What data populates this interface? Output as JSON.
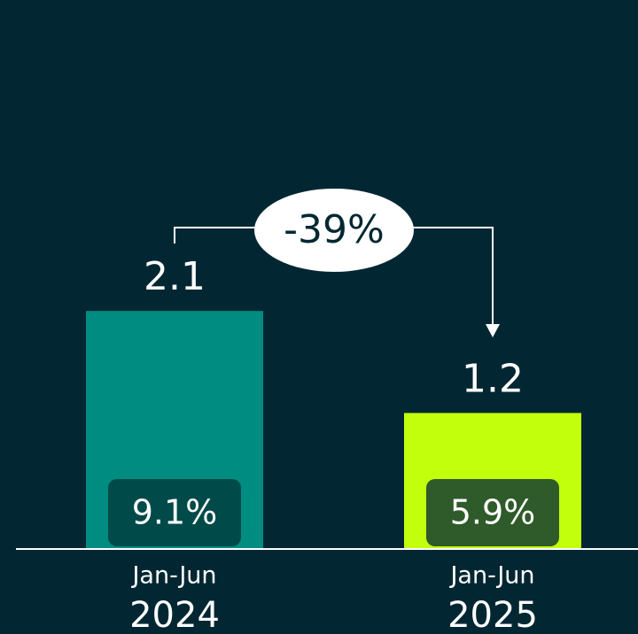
{
  "chart_data": {
    "type": "bar",
    "categories": [
      [
        "Jan-Jun",
        "2024"
      ],
      [
        "Jan-Jun",
        "2025"
      ]
    ],
    "values": [
      2.1,
      1.2
    ],
    "colors": [
      "#008c80",
      "#c2ff0d"
    ],
    "inner_values": [
      9.1,
      5.9
    ],
    "inner_value_labels": [
      "9.1%",
      "5.9%"
    ],
    "inner_colors": [
      "#004a4a",
      "#2f5a2a"
    ],
    "annotation": "-39%"
  }
}
